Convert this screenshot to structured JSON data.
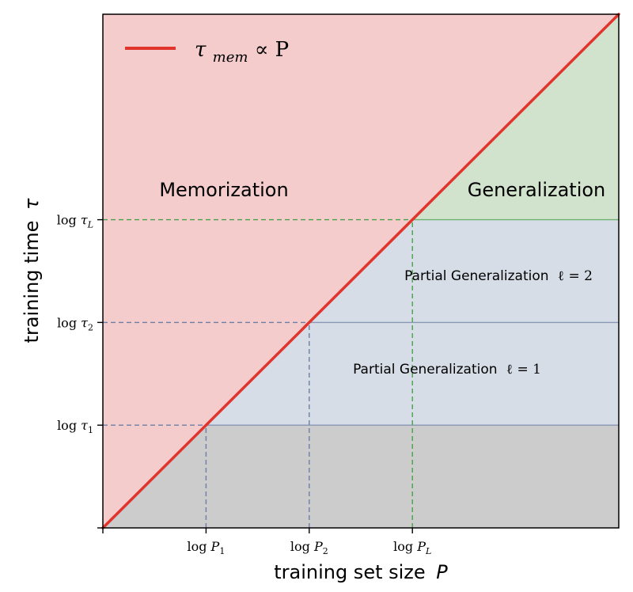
{
  "chart_data": {
    "type": "area",
    "title": "",
    "xlabel": "training set size",
    "xlabel_var": "P",
    "ylabel": "training time",
    "ylabel_var": "τ",
    "xlim": [
      0,
      5
    ],
    "ylim": [
      0,
      5
    ],
    "grid": false,
    "legend": {
      "placement": "top-left",
      "entries": [
        {
          "name": "τ_mem ∝ P",
          "color": "#e0342d"
        }
      ]
    },
    "line": {
      "name": "τ_mem ∝ P",
      "x": [
        0,
        5
      ],
      "y": [
        0,
        5
      ],
      "color": "#e0342d"
    },
    "x_ticks": [
      {
        "value": 0,
        "label": ""
      },
      {
        "value": 1,
        "label": "log P",
        "sub": "1"
      },
      {
        "value": 2,
        "label": "log P",
        "sub": "2"
      },
      {
        "value": 3,
        "label": "log P",
        "sub": "L"
      }
    ],
    "y_ticks": [
      {
        "value": 0,
        "label": ""
      },
      {
        "value": 1,
        "label": "log τ",
        "sub": "1"
      },
      {
        "value": 2,
        "label": "log τ",
        "sub": "2"
      },
      {
        "value": 3,
        "label": "log τ",
        "sub": "L"
      }
    ],
    "regions": [
      {
        "name": "Memorization",
        "color": "#f4cccc"
      },
      {
        "name": "Generalization",
        "color": "#d2e3cd"
      },
      {
        "name": "Partial Generalization ℓ = 2",
        "color": "#d6dde6"
      },
      {
        "name": "Partial Generalization ℓ = 1",
        "color": "#d6dde6"
      },
      {
        "name": "",
        "color": "#cccccc"
      }
    ],
    "thresholds": [
      {
        "level": 1,
        "x": 1,
        "y": 1,
        "color": "#6d7ea6"
      },
      {
        "level": 2,
        "x": 2,
        "y": 2,
        "color": "#6d7ea6"
      },
      {
        "level": "L",
        "x": 3,
        "y": 3,
        "color": "#4aa04a"
      }
    ]
  },
  "labels": {
    "memorization": "Memorization",
    "generalization": "Generalization",
    "partial_l2": "Partial Generalization",
    "partial_l2_eq": "ℓ = 2",
    "partial_l1": "Partial Generalization",
    "partial_l1_eq": "ℓ = 1",
    "legend_tau": "τ",
    "legend_sub": "mem",
    "legend_rest": " ∝ P"
  }
}
